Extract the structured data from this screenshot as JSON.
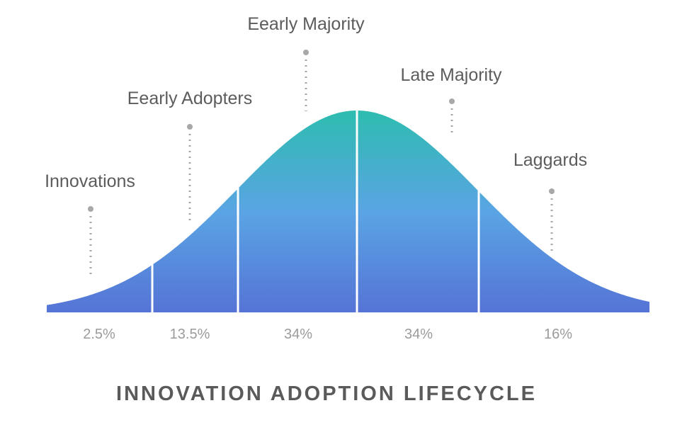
{
  "title": "INNOVATION ADOPTION LIFECYCLE",
  "colors": {
    "gradient_top": "#2ebcb0",
    "gradient_mid": "#5aa4e4",
    "gradient_bottom": "#5574d6",
    "divider": "#ffffff",
    "leader_dots": "#a8a8a8",
    "label_text": "#5c5c5c",
    "percent_text": "#9b9b9b"
  },
  "segments": [
    {
      "label": "Innovations",
      "percent": "2.5%"
    },
    {
      "label": "Eearly Adopters",
      "percent": "13.5%"
    },
    {
      "label": "Eearly Majority",
      "percent": "34%"
    },
    {
      "label": "Late Majority",
      "percent": "34%"
    },
    {
      "label": "Laggards",
      "percent": "16%"
    }
  ]
}
